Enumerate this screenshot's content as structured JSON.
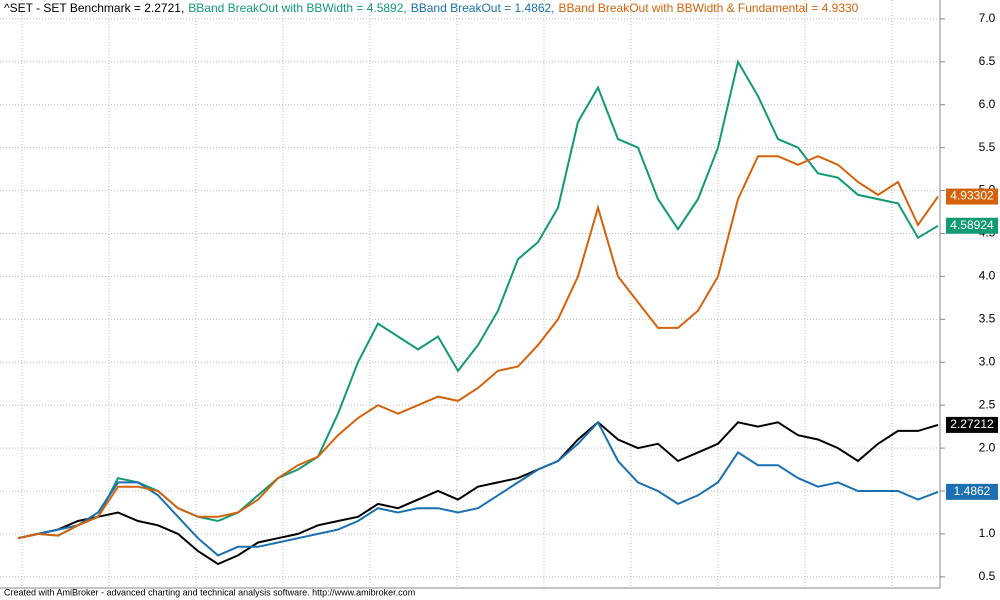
{
  "chart_data": {
    "type": "line",
    "footer": "Created with AmiBroker - advanced charting and technical analysis software. http://www.amibroker.com",
    "ylim": [
      0.37,
      7.22
    ],
    "yticks": [
      0.5,
      {
        "value": 1,
        "label": "1.0"
      },
      1.5,
      {
        "value": 2,
        "label": "2.0"
      },
      2.5,
      {
        "value": 3,
        "label": "3.0"
      },
      3.5,
      {
        "value": 4,
        "label": "4.0"
      },
      4.5,
      {
        "value": 5,
        "label": "5.0"
      },
      5.5,
      {
        "value": 6,
        "label": "6.0"
      },
      6.5,
      {
        "value": 7,
        "label": "7.0"
      }
    ],
    "grid": true,
    "series": [
      {
        "name": "^SET - SET Benchmark = 2.2721,",
        "color": "#000000",
        "tag": "2.27212",
        "values": [
          0.95,
          1.0,
          1.05,
          1.15,
          1.2,
          1.25,
          1.15,
          1.1,
          1.0,
          0.8,
          0.65,
          0.75,
          0.9,
          0.95,
          1.0,
          1.1,
          1.15,
          1.2,
          1.35,
          1.3,
          1.4,
          1.5,
          1.4,
          1.55,
          1.6,
          1.65,
          1.75,
          1.85,
          2.1,
          2.3,
          2.1,
          2.0,
          2.05,
          1.85,
          1.95,
          2.05,
          2.3,
          2.25,
          2.3,
          2.15,
          2.1,
          2.0,
          1.85,
          2.05,
          2.2,
          2.2,
          2.27
        ]
      },
      {
        "name": "BBand BreakOut with BBWidth = 4.5892,",
        "color": "#119a74",
        "tag": "4.58924",
        "values": [
          0.95,
          1.0,
          0.98,
          1.1,
          1.2,
          1.65,
          1.6,
          1.5,
          1.3,
          1.2,
          1.15,
          1.25,
          1.45,
          1.65,
          1.75,
          1.9,
          2.4,
          3.0,
          3.45,
          3.3,
          3.15,
          3.3,
          2.9,
          3.2,
          3.6,
          4.2,
          4.4,
          4.8,
          5.8,
          6.2,
          5.6,
          5.5,
          4.9,
          4.55,
          4.9,
          5.5,
          6.5,
          6.1,
          5.6,
          5.5,
          5.2,
          5.15,
          4.95,
          4.9,
          4.85,
          4.45,
          4.59
        ]
      },
      {
        "name": "BBand BreakOut = 1.4862,",
        "color": "#1a70b0",
        "tag": "1.4862",
        "values": [
          0.95,
          1.0,
          1.05,
          1.1,
          1.25,
          1.6,
          1.6,
          1.45,
          1.2,
          0.95,
          0.75,
          0.85,
          0.85,
          0.9,
          0.95,
          1.0,
          1.05,
          1.15,
          1.3,
          1.25,
          1.3,
          1.3,
          1.25,
          1.3,
          1.45,
          1.6,
          1.75,
          1.85,
          2.05,
          2.3,
          1.85,
          1.6,
          1.5,
          1.35,
          1.45,
          1.6,
          1.95,
          1.8,
          1.8,
          1.65,
          1.55,
          1.6,
          1.5,
          1.5,
          1.5,
          1.4,
          1.49
        ]
      },
      {
        "name": "BBand BreakOut with BBWidth & Fundamental = 4.9330",
        "color": "#d4620a",
        "tag": "4.93302",
        "values": [
          0.95,
          1.0,
          0.98,
          1.1,
          1.2,
          1.55,
          1.55,
          1.5,
          1.3,
          1.2,
          1.2,
          1.25,
          1.4,
          1.65,
          1.8,
          1.9,
          2.15,
          2.35,
          2.5,
          2.4,
          2.5,
          2.6,
          2.55,
          2.7,
          2.9,
          2.95,
          3.2,
          3.5,
          4.0,
          4.8,
          4.0,
          3.7,
          3.4,
          3.4,
          3.6,
          4.0,
          4.9,
          5.4,
          5.4,
          5.3,
          5.4,
          5.3,
          5.1,
          4.95,
          5.1,
          4.6,
          4.93
        ]
      }
    ]
  }
}
